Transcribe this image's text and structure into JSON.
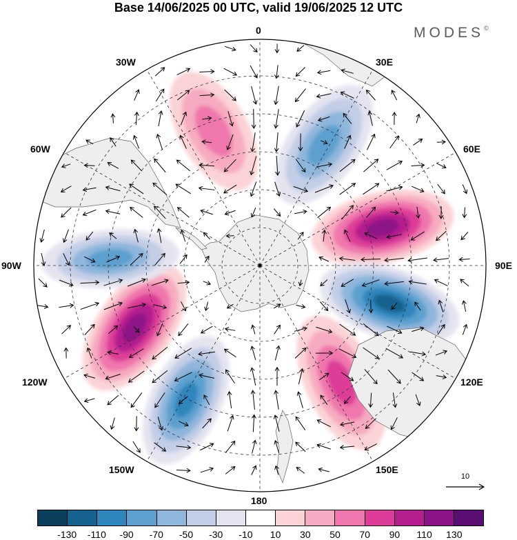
{
  "title": "Base 14/06/2025 00 UTC, valid 19/06/2025 12 UTC",
  "brand": "MODES",
  "brand_mark": "©",
  "longitude_labels": {
    "deg0": "0",
    "e30": "30E",
    "e60": "60E",
    "e90": "90E",
    "e120": "120E",
    "e150": "150E",
    "deg180": "180",
    "w150": "150W",
    "w120": "120W",
    "w90": "90W",
    "w60": "60W",
    "w30": "30W"
  },
  "reference_vector_label": "10",
  "colorbar": {
    "colors": [
      "#0b3f5e",
      "#15628e",
      "#2f86bd",
      "#5ba0cf",
      "#8fb6db",
      "#c2cde6",
      "#e4e4f0",
      "#ffffff",
      "#fbd3d6",
      "#f7abc0",
      "#ef77ad",
      "#dd3c98",
      "#b51e8e",
      "#8c1287",
      "#5a0e74"
    ],
    "ticks": [
      "-130",
      "-110",
      "-90",
      "-70",
      "-50",
      "-30",
      "-10",
      "10",
      "30",
      "50",
      "70",
      "90",
      "110",
      "130"
    ]
  },
  "anomaly_centers": [
    {
      "value": 60,
      "description": "positive lobe toward 15W"
    },
    {
      "value": -80,
      "description": "negative lobe toward 35E"
    },
    {
      "value": 130,
      "description": "positive lobe toward 70E"
    },
    {
      "value": -130,
      "description": "negative lobe toward 100E"
    },
    {
      "value": 90,
      "description": "positive lobe toward 145E"
    },
    {
      "value": -100,
      "description": "negative lobe toward 155W"
    },
    {
      "value": 120,
      "description": "positive lobe toward 120W"
    },
    {
      "value": -80,
      "description": "negative lobe toward 85W"
    }
  ]
}
